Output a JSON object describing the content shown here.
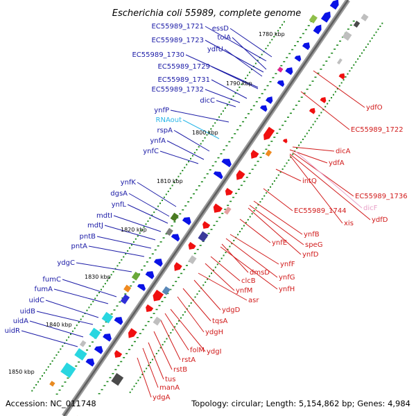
{
  "title": "Escherichia coli 55989, complete genome",
  "footer": {
    "accession": "Accession: NC_011748",
    "info": "Topology: circular; Length: 5,154,862 bp; Genes: 4,984"
  },
  "colors": {
    "backbone": "#7a7a7a",
    "forward_label": "#1a1aa6",
    "reverse_label": "#d11a1a",
    "rna_label": "#29b6e8",
    "pseudo_label": "#e8a0c8",
    "forward_gene": "#0a12e6",
    "reverse_gene": "#f01010",
    "tick": "#1e8a1e"
  },
  "kbp_ticks": [
    "1780 kbp",
    "1790 kbp",
    "1800 kbp",
    "1810 kbp",
    "1820 kbp",
    "1830 kbp",
    "1840 kbp",
    "1850 kbp"
  ],
  "forward_labels": [
    {
      "text": "essD",
      "kind": "gene"
    },
    {
      "text": "EC55989_1721",
      "kind": "gene"
    },
    {
      "text": "tolA",
      "kind": "gene"
    },
    {
      "text": "EC55989_1723",
      "kind": "gene"
    },
    {
      "text": "ydfU",
      "kind": "gene"
    },
    {
      "text": "EC55989_1730",
      "kind": "gene"
    },
    {
      "text": "EC55989_1729",
      "kind": "gene"
    },
    {
      "text": "EC55989_1731",
      "kind": "gene"
    },
    {
      "text": "EC55989_1732",
      "kind": "gene"
    },
    {
      "text": "dicC",
      "kind": "gene"
    },
    {
      "text": "ynfP",
      "kind": "gene"
    },
    {
      "text": "RNAout",
      "kind": "rna"
    },
    {
      "text": "rspA",
      "kind": "gene"
    },
    {
      "text": "ynfA",
      "kind": "gene"
    },
    {
      "text": "ynfC",
      "kind": "gene"
    },
    {
      "text": "ynfK",
      "kind": "gene"
    },
    {
      "text": "dgsA",
      "kind": "gene"
    },
    {
      "text": "ynfL",
      "kind": "gene"
    },
    {
      "text": "mdtI",
      "kind": "gene"
    },
    {
      "text": "mdtJ",
      "kind": "gene"
    },
    {
      "text": "pntB",
      "kind": "gene"
    },
    {
      "text": "pntA",
      "kind": "gene"
    },
    {
      "text": "ydgC",
      "kind": "gene"
    },
    {
      "text": "fumC",
      "kind": "gene"
    },
    {
      "text": "fumA",
      "kind": "gene"
    },
    {
      "text": "uidC",
      "kind": "gene"
    },
    {
      "text": "uidB",
      "kind": "gene"
    },
    {
      "text": "uidA",
      "kind": "gene"
    },
    {
      "text": "uidR",
      "kind": "gene"
    }
  ],
  "reverse_labels": [
    {
      "text": "ydfO",
      "kind": "gene"
    },
    {
      "text": "EC55989_1722",
      "kind": "gene"
    },
    {
      "text": "dicA",
      "kind": "gene"
    },
    {
      "text": "ydfA",
      "kind": "gene"
    },
    {
      "text": "intQ",
      "kind": "gene"
    },
    {
      "text": "EC55989_1736",
      "kind": "gene"
    },
    {
      "text": "dicF",
      "kind": "pseudo"
    },
    {
      "text": "EC55989_1744",
      "kind": "gene"
    },
    {
      "text": "xis",
      "kind": "gene"
    },
    {
      "text": "ydfD",
      "kind": "gene"
    },
    {
      "text": "ynfB",
      "kind": "gene"
    },
    {
      "text": "speG",
      "kind": "gene"
    },
    {
      "text": "ynfE",
      "kind": "gene"
    },
    {
      "text": "ynfD",
      "kind": "gene"
    },
    {
      "text": "ynfF",
      "kind": "gene"
    },
    {
      "text": "dmsD",
      "kind": "gene"
    },
    {
      "text": "ynfG",
      "kind": "gene"
    },
    {
      "text": "clcB",
      "kind": "gene"
    },
    {
      "text": "ynfH",
      "kind": "gene"
    },
    {
      "text": "ynfM",
      "kind": "gene"
    },
    {
      "text": "asr",
      "kind": "gene"
    },
    {
      "text": "ydgD",
      "kind": "gene"
    },
    {
      "text": "tqsA",
      "kind": "gene"
    },
    {
      "text": "ydgH",
      "kind": "gene"
    },
    {
      "text": "folM",
      "kind": "gene"
    },
    {
      "text": "ydgI",
      "kind": "gene"
    },
    {
      "text": "rstA",
      "kind": "gene"
    },
    {
      "text": "rstB",
      "kind": "gene"
    },
    {
      "text": "tus",
      "kind": "gene"
    },
    {
      "text": "manA",
      "kind": "gene"
    },
    {
      "text": "ydgA",
      "kind": "gene"
    }
  ]
}
